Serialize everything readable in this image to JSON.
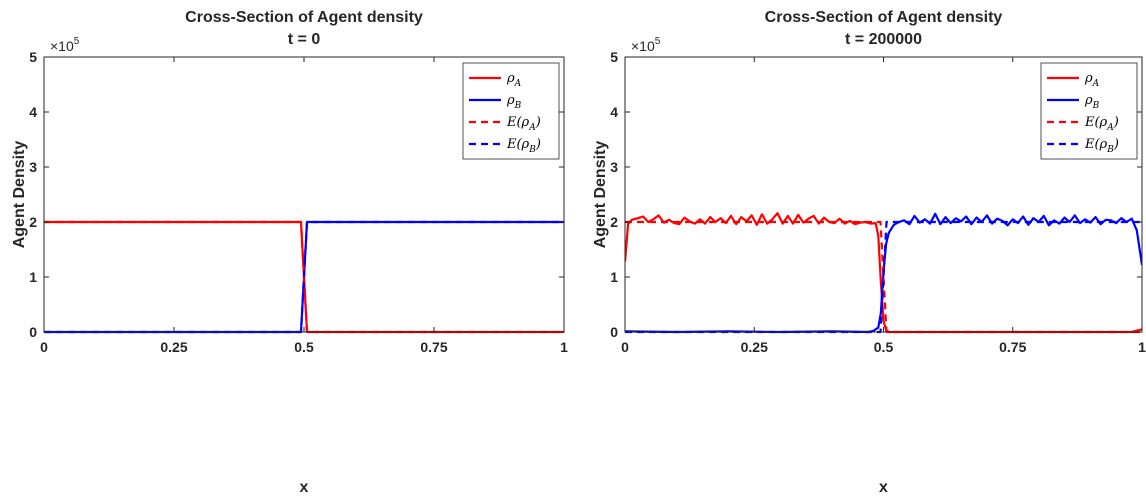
{
  "chart_data": [
    {
      "type": "line",
      "title": "Cross-Section of Agent density",
      "subtitle": "t = 0",
      "xlabel": "x",
      "ylabel": "Agent Density",
      "y_multiplier": "×10^5",
      "y_multiplier_base": "×10",
      "y_multiplier_exp": "5",
      "xlim": [
        0,
        1
      ],
      "ylim": [
        0,
        500000
      ],
      "xticks": [
        0,
        0.25,
        0.5,
        0.75,
        1
      ],
      "xtick_labels": [
        "0",
        "0.25",
        "0.5",
        "0.75",
        "1"
      ],
      "yticks": [
        0,
        100000,
        200000,
        300000,
        400000,
        500000
      ],
      "ytick_labels": [
        "0",
        "1",
        "2",
        "3",
        "4",
        "5"
      ],
      "grid": false,
      "legend_position": "top-right",
      "series": [
        {
          "name": "ρA",
          "legend_main": "ρ",
          "legend_sub": "A",
          "color": "#ff0000",
          "dash": "solid",
          "x": [
            0,
            0.4942,
            0.5058,
            1
          ],
          "y": [
            200000,
            200000,
            0,
            0
          ]
        },
        {
          "name": "ρB",
          "legend_main": "ρ",
          "legend_sub": "B",
          "color": "#0000ff",
          "dash": "solid",
          "x": [
            0,
            0.4942,
            0.5058,
            1
          ],
          "y": [
            0,
            0,
            200000,
            200000
          ]
        },
        {
          "name": "E(ρA)",
          "legend_main": "E(ρ",
          "legend_sub": "A",
          "legend_close": ")",
          "color": "#ff0000",
          "dash": "dashed",
          "x": [
            0,
            0.4942,
            0.5058,
            1
          ],
          "y": [
            200000,
            200000,
            0,
            0
          ]
        },
        {
          "name": "E(ρB)",
          "legend_main": "E(ρ",
          "legend_sub": "B",
          "legend_close": ")",
          "color": "#0000ff",
          "dash": "dashed",
          "x": [
            0,
            0.4942,
            0.5058,
            1
          ],
          "y": [
            0,
            0,
            200000,
            200000
          ]
        }
      ]
    },
    {
      "type": "line",
      "title": "Cross-Section of Agent density",
      "subtitle": "t = 200000",
      "xlabel": "x",
      "ylabel": "Agent Density",
      "y_multiplier": "×10^5",
      "y_multiplier_base": "×10",
      "y_multiplier_exp": "5",
      "xlim": [
        0,
        1
      ],
      "ylim": [
        0,
        500000
      ],
      "xticks": [
        0,
        0.25,
        0.5,
        0.75,
        1
      ],
      "xtick_labels": [
        "0",
        "0.25",
        "0.5",
        "0.75",
        "1"
      ],
      "yticks": [
        0,
        100000,
        200000,
        300000,
        400000,
        500000
      ],
      "ytick_labels": [
        "0",
        "1",
        "2",
        "3",
        "4",
        "5"
      ],
      "grid": false,
      "legend_position": "top-right",
      "series": [
        {
          "name": "ρA",
          "legend_main": "ρ",
          "legend_sub": "A",
          "color": "#ff0000",
          "dash": "solid",
          "x": [
            0,
            0.006,
            0.013,
            0.025,
            0.035,
            0.045,
            0.055,
            0.065,
            0.075,
            0.085,
            0.095,
            0.105,
            0.115,
            0.125,
            0.135,
            0.145,
            0.155,
            0.165,
            0.175,
            0.185,
            0.195,
            0.205,
            0.215,
            0.225,
            0.235,
            0.245,
            0.255,
            0.265,
            0.275,
            0.285,
            0.295,
            0.305,
            0.315,
            0.325,
            0.335,
            0.345,
            0.355,
            0.365,
            0.375,
            0.385,
            0.395,
            0.405,
            0.415,
            0.425,
            0.435,
            0.445,
            0.455,
            0.465,
            0.475,
            0.485,
            0.49,
            0.495,
            0.5,
            0.505,
            0.51,
            0.52,
            0.6,
            0.7,
            0.8,
            0.9,
            0.98,
            1.0
          ],
          "y": [
            128000,
            196000,
            204000,
            207000,
            210000,
            200000,
            205000,
            212000,
            199000,
            204000,
            198000,
            196000,
            208000,
            201000,
            197000,
            205000,
            197000,
            209000,
            200000,
            207000,
            198000,
            211000,
            196000,
            209000,
            201000,
            212000,
            195000,
            214000,
            197000,
            205000,
            216000,
            197000,
            211000,
            197000,
            213000,
            199000,
            206000,
            211000,
            197000,
            208000,
            200000,
            198000,
            206000,
            197000,
            202000,
            196000,
            199000,
            200000,
            197000,
            198000,
            175000,
            90000,
            20000,
            4000,
            0,
            0,
            0,
            0,
            0,
            0,
            0,
            5000
          ]
        },
        {
          "name": "ρB",
          "legend_main": "ρ",
          "legend_sub": "B",
          "color": "#0000ff",
          "dash": "solid",
          "x": [
            0,
            0.1,
            0.2,
            0.3,
            0.4,
            0.47,
            0.48,
            0.49,
            0.495,
            0.5,
            0.505,
            0.51,
            0.52,
            0.53,
            0.54,
            0.55,
            0.56,
            0.57,
            0.58,
            0.59,
            0.6,
            0.61,
            0.62,
            0.63,
            0.64,
            0.65,
            0.66,
            0.67,
            0.68,
            0.69,
            0.7,
            0.71,
            0.72,
            0.73,
            0.74,
            0.75,
            0.76,
            0.77,
            0.78,
            0.79,
            0.8,
            0.81,
            0.82,
            0.83,
            0.84,
            0.85,
            0.86,
            0.87,
            0.88,
            0.89,
            0.9,
            0.91,
            0.92,
            0.93,
            0.94,
            0.95,
            0.96,
            0.97,
            0.98,
            0.99,
            1.0
          ],
          "y": [
            1000,
            0,
            1000,
            0,
            1000,
            0,
            2000,
            8000,
            35000,
            110000,
            160000,
            180000,
            195000,
            200000,
            203000,
            196000,
            211000,
            199000,
            205000,
            197000,
            215000,
            196000,
            209000,
            198000,
            207000,
            201000,
            210000,
            196000,
            208000,
            200000,
            212000,
            197000,
            206000,
            202000,
            194000,
            205000,
            198000,
            210000,
            195000,
            207000,
            200000,
            211000,
            194000,
            203000,
            197000,
            208000,
            200000,
            212000,
            198000,
            205000,
            199000,
            209000,
            196000,
            204000,
            203000,
            198000,
            207000,
            200000,
            206000,
            185000,
            122000
          ]
        },
        {
          "name": "E(ρA)",
          "legend_main": "E(ρ",
          "legend_sub": "A",
          "legend_close": ")",
          "color": "#ff0000",
          "dash": "dashed",
          "x": [
            0,
            0.4942,
            0.5058,
            1
          ],
          "y": [
            200000,
            200000,
            0,
            0
          ]
        },
        {
          "name": "E(ρB)",
          "legend_main": "E(ρ",
          "legend_sub": "B",
          "legend_close": ")",
          "color": "#0000ff",
          "dash": "dashed",
          "x": [
            0,
            0.4942,
            0.5058,
            1
          ],
          "y": [
            0,
            0,
            200000,
            200000
          ]
        }
      ]
    }
  ]
}
